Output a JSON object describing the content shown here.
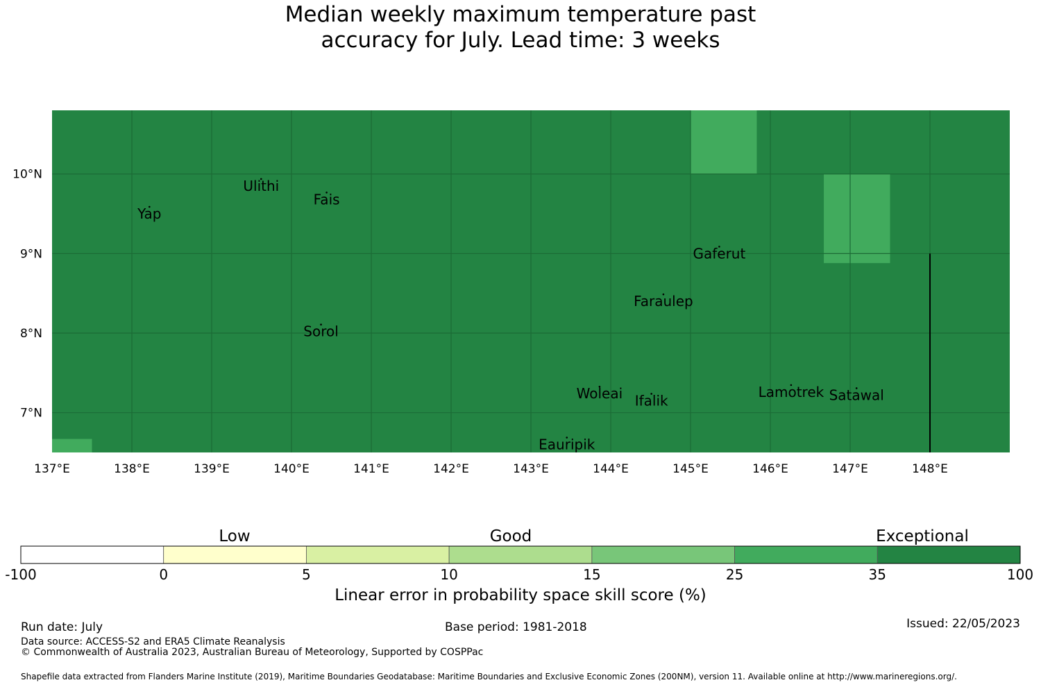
{
  "title": {
    "line1": "Median weekly maximum temperature past",
    "line2": "accuracy for July. Lead time: 3 weeks"
  },
  "map": {
    "lon_range": [
      137,
      149
    ],
    "lat_range": [
      6.5,
      10.8
    ],
    "lon_ticks": [
      {
        "value": 137,
        "label": "137°E"
      },
      {
        "value": 138,
        "label": "138°E"
      },
      {
        "value": 139,
        "label": "139°E"
      },
      {
        "value": 140,
        "label": "140°E"
      },
      {
        "value": 141,
        "label": "141°E"
      },
      {
        "value": 142,
        "label": "142°E"
      },
      {
        "value": 143,
        "label": "143°E"
      },
      {
        "value": 144,
        "label": "144°E"
      },
      {
        "value": 145,
        "label": "145°E"
      },
      {
        "value": 146,
        "label": "146°E"
      },
      {
        "value": 147,
        "label": "147°E"
      },
      {
        "value": 148,
        "label": "148°E"
      }
    ],
    "lat_ticks": [
      {
        "value": 10,
        "label": "10°N"
      },
      {
        "value": 9,
        "label": "9°N"
      },
      {
        "value": 8,
        "label": "8°N"
      },
      {
        "value": 7,
        "label": "7°N"
      }
    ],
    "background_class": "35 to 100",
    "colors": {
      "exceptional": "#238443",
      "upper_good": "#41ab5d",
      "grid": "#1c6b36",
      "boundary": "#000000"
    },
    "cells_25_to_35": [
      {
        "lon": [
          145.0,
          145.83
        ],
        "lat": [
          10.0,
          10.8
        ]
      },
      {
        "lon": [
          146.67,
          147.5
        ],
        "lat": [
          8.88,
          10.0
        ]
      },
      {
        "lon": [
          137.0,
          137.5
        ],
        "lat": [
          6.5,
          6.67
        ]
      }
    ],
    "boundary_line": {
      "lon": 148.0,
      "lat": [
        6.5,
        9.0
      ]
    },
    "places": [
      {
        "name": "Yap",
        "lon": 138.22,
        "lat": 9.5
      },
      {
        "name": "Ulithi",
        "lon": 139.62,
        "lat": 9.85
      },
      {
        "name": "Fais",
        "lon": 140.44,
        "lat": 9.68
      },
      {
        "name": "Gaferut",
        "lon": 145.36,
        "lat": 9.0
      },
      {
        "name": "Faraulep",
        "lon": 144.66,
        "lat": 8.4
      },
      {
        "name": "Sorol",
        "lon": 140.37,
        "lat": 8.02
      },
      {
        "name": "Woleai",
        "lon": 143.86,
        "lat": 7.24
      },
      {
        "name": "Ifalik",
        "lon": 144.51,
        "lat": 7.15
      },
      {
        "name": "Lamotrek",
        "lon": 146.26,
        "lat": 7.26
      },
      {
        "name": "Satawal",
        "lon": 147.08,
        "lat": 7.22
      },
      {
        "name": "Eauripik",
        "lon": 143.45,
        "lat": 6.6
      }
    ]
  },
  "colorbar": {
    "bins": [
      {
        "from": -100,
        "to": 0,
        "color": "#ffffff"
      },
      {
        "from": 0,
        "to": 5,
        "color": "#ffffcc"
      },
      {
        "from": 5,
        "to": 10,
        "color": "#d9f0a3"
      },
      {
        "from": 10,
        "to": 15,
        "color": "#addd8e"
      },
      {
        "from": 15,
        "to": 25,
        "color": "#78c679"
      },
      {
        "from": 25,
        "to": 35,
        "color": "#41ab5d"
      },
      {
        "from": 35,
        "to": 100,
        "color": "#238443"
      }
    ],
    "tick_labels": [
      "-100",
      "0",
      "5",
      "10",
      "15",
      "25",
      "35",
      "100"
    ],
    "categories": [
      "Low",
      "Good",
      "Exceptional"
    ],
    "label": "Linear error in probability space skill score (%)"
  },
  "footer": {
    "run_date": "Run date: July",
    "base_period": "Base period: 1981-2018",
    "issued": "Issued: 22/05/2023",
    "data_source": "Data source: ACCESS-S2 and ERA5 Climate Reanalysis",
    "copyright": "© Commonwealth of Australia 2023, Australian Bureau of Meteorology, Supported by COSPPac",
    "shapefile": "Shapefile data extracted from Flanders Marine Institute (2019), Maritime Boundaries Geodatabase: Maritime Boundaries and Exclusive Economic Zones (200NM), version 11. Available online at http://www.marineregions.org/."
  }
}
